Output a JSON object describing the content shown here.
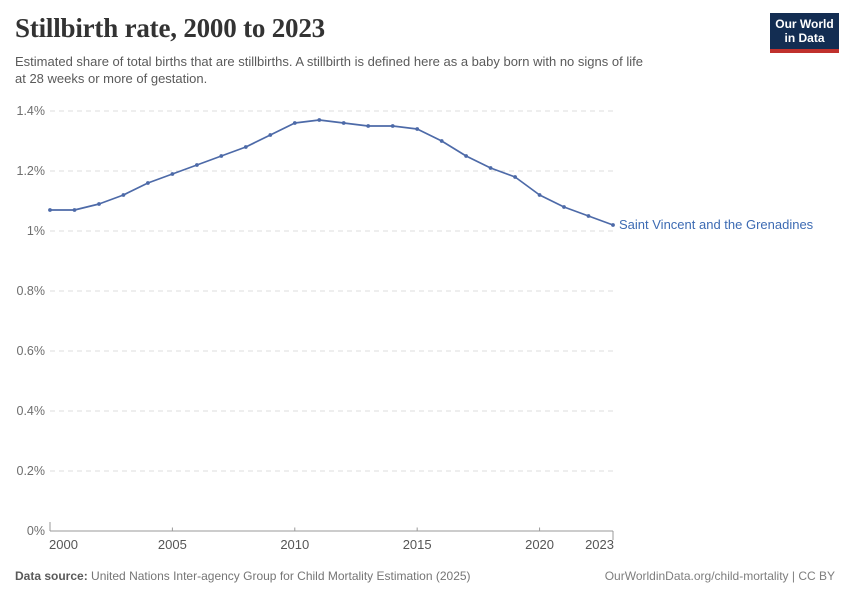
{
  "header": {
    "title": "Stillbirth rate, 2000 to 2023",
    "subtitle_lines": [
      "Estimated share of total births that are stillbirths. A stillbirth is defined here as a baby born with no signs of life",
      "at 28 weeks or more of gestation."
    ]
  },
  "logo": {
    "line1": "Our World",
    "line2": "in Data",
    "bg_color": "#132d52",
    "accent_color": "#c0312d"
  },
  "chart_data": {
    "type": "line",
    "title": "Stillbirth rate, 2000 to 2023",
    "xlabel": "",
    "ylabel": "",
    "xlim": [
      2000,
      2023
    ],
    "ylim": [
      0,
      1.4
    ],
    "grid": true,
    "legend_position": "end-of-line",
    "end_label": "Saint Vincent and the Grenadines",
    "x": [
      2000,
      2001,
      2002,
      2003,
      2004,
      2005,
      2006,
      2007,
      2008,
      2009,
      2010,
      2011,
      2012,
      2013,
      2014,
      2015,
      2016,
      2017,
      2018,
      2019,
      2020,
      2021,
      2022,
      2023
    ],
    "series": [
      {
        "name": "Saint Vincent and the Grenadines",
        "unit": "%",
        "values": [
          1.07,
          1.07,
          1.09,
          1.12,
          1.16,
          1.19,
          1.22,
          1.25,
          1.28,
          1.32,
          1.36,
          1.37,
          1.36,
          1.35,
          1.35,
          1.34,
          1.3,
          1.25,
          1.21,
          1.18,
          1.12,
          1.08,
          1.05,
          1.02
        ]
      }
    ],
    "y_ticks": [
      {
        "value": 0,
        "label": "0%"
      },
      {
        "value": 0.2,
        "label": "0.2%"
      },
      {
        "value": 0.4,
        "label": "0.4%"
      },
      {
        "value": 0.6,
        "label": "0.6%"
      },
      {
        "value": 0.8,
        "label": "0.8%"
      },
      {
        "value": 1.0,
        "label": "1%"
      },
      {
        "value": 1.2,
        "label": "1.2%"
      },
      {
        "value": 1.4,
        "label": "1.4%"
      }
    ],
    "x_ticks": [
      {
        "value": 2000,
        "label": "2000"
      },
      {
        "value": 2005,
        "label": "2005"
      },
      {
        "value": 2010,
        "label": "2010"
      },
      {
        "value": 2015,
        "label": "2015"
      },
      {
        "value": 2020,
        "label": "2020"
      },
      {
        "value": 2023,
        "label": "2023"
      }
    ]
  },
  "footer": {
    "source_label": "Data source:",
    "source_text": "United Nations Inter-agency Group for Child Mortality Estimation (2025)",
    "attribution": "OurWorldinData.org/child-mortality | CC BY"
  },
  "colors": {
    "line": "#4d6aa8",
    "point": "#4d6aa8",
    "end_label": "#3d6bb3",
    "grid": "#dcdcdc",
    "axis": "#999999",
    "y_tick_text": "#6e6e6e",
    "x_tick_text": "#565656",
    "title_text": "#333333",
    "subtitle_text": "#5a5a5a"
  }
}
